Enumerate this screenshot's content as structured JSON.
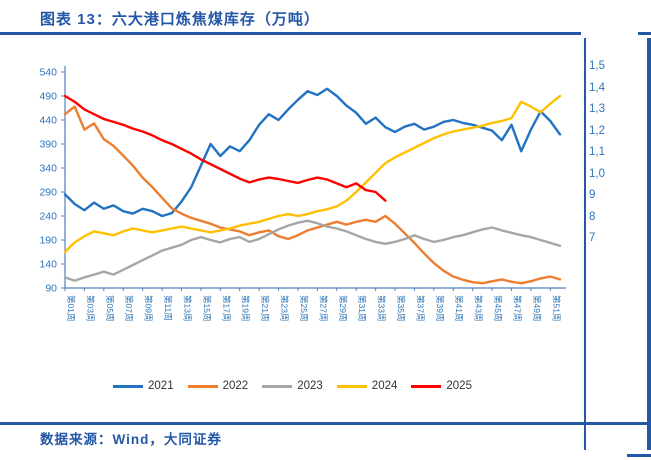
{
  "figure": {
    "title": "图表 13：六大港口炼焦煤库存（万吨）"
  },
  "footer": {
    "source": "数据来源：Wind，大同证券"
  },
  "colors": {
    "accent_blue": "#2457A7",
    "axis_line": "#4F81BD",
    "tick_text": "#2E75B6"
  },
  "right_panel": {
    "labels": [
      "1,5",
      "1,4",
      "1,3",
      "1,2",
      "1,1",
      "1,0",
      "9",
      "8",
      "7"
    ]
  },
  "chart_data": {
    "type": "line",
    "title": "六大港口炼焦煤库存（万吨）",
    "xlabel": "周",
    "ylabel": "万吨",
    "grid": false,
    "legend_position": "bottom",
    "weeks": 52,
    "ylim": [
      90,
      540
    ],
    "yticks": [
      90,
      140,
      190,
      240,
      290,
      340,
      390,
      440,
      490,
      540
    ],
    "xtick_labels": [
      "第01周",
      "第03周",
      "第05周",
      "第07周",
      "第09周",
      "第11周",
      "第13周",
      "第15周",
      "第17周",
      "第19周",
      "第21周",
      "第23周",
      "第25周",
      "第27周",
      "第29周",
      "第31周",
      "第33周",
      "第35周",
      "第37周",
      "第39周",
      "第41周",
      "第43周",
      "第45周",
      "第47周",
      "第49周",
      "第51周"
    ],
    "series": [
      {
        "name": "2021",
        "color": "#2272C3",
        "values": [
          285,
          265,
          252,
          268,
          255,
          262,
          250,
          245,
          255,
          250,
          240,
          246,
          270,
          300,
          345,
          390,
          365,
          385,
          375,
          398,
          430,
          452,
          440,
          462,
          482,
          500,
          492,
          505,
          490,
          470,
          455,
          432,
          445,
          425,
          415,
          426,
          432,
          420,
          426,
          436,
          440,
          434,
          430,
          424,
          418,
          398,
          430,
          375,
          420,
          458,
          438,
          410
        ]
      },
      {
        "name": "2022",
        "color": "#ED7D31",
        "values": [
          452,
          468,
          420,
          433,
          400,
          386,
          366,
          345,
          320,
          300,
          278,
          256,
          245,
          236,
          230,
          224,
          216,
          212,
          208,
          200,
          206,
          210,
          198,
          192,
          200,
          210,
          216,
          222,
          228,
          222,
          228,
          232,
          228,
          240,
          224,
          204,
          184,
          162,
          142,
          126,
          114,
          107,
          102,
          100,
          104,
          108,
          103,
          100,
          104,
          110,
          114,
          108
        ]
      },
      {
        "name": "2023",
        "color": "#A6A6A6",
        "values": [
          112,
          105,
          112,
          118,
          124,
          118,
          128,
          138,
          148,
          158,
          168,
          174,
          180,
          190,
          196,
          190,
          185,
          192,
          196,
          186,
          192,
          202,
          212,
          220,
          226,
          230,
          225,
          218,
          214,
          208,
          200,
          192,
          186,
          182,
          186,
          192,
          200,
          192,
          186,
          190,
          196,
          200,
          206,
          212,
          216,
          210,
          205,
          200,
          196,
          190,
          184,
          178
        ]
      },
      {
        "name": "2024",
        "color": "#FFC000",
        "values": [
          165,
          185,
          198,
          208,
          204,
          200,
          208,
          214,
          210,
          206,
          210,
          214,
          218,
          214,
          210,
          206,
          210,
          214,
          220,
          224,
          228,
          234,
          240,
          244,
          240,
          244,
          250,
          254,
          260,
          272,
          290,
          310,
          330,
          350,
          362,
          372,
          382,
          392,
          402,
          410,
          416,
          420,
          424,
          428,
          434,
          438,
          444,
          478,
          468,
          456,
          474,
          490
        ]
      },
      {
        "name": "2025",
        "color": "#FF0000",
        "values": [
          490,
          478,
          462,
          452,
          442,
          436,
          430,
          422,
          416,
          408,
          398,
          390,
          380,
          370,
          358,
          348,
          338,
          328,
          318,
          310,
          316,
          320,
          317,
          313,
          309,
          315,
          320,
          316,
          308,
          300,
          308,
          294,
          290,
          272
        ]
      }
    ]
  }
}
